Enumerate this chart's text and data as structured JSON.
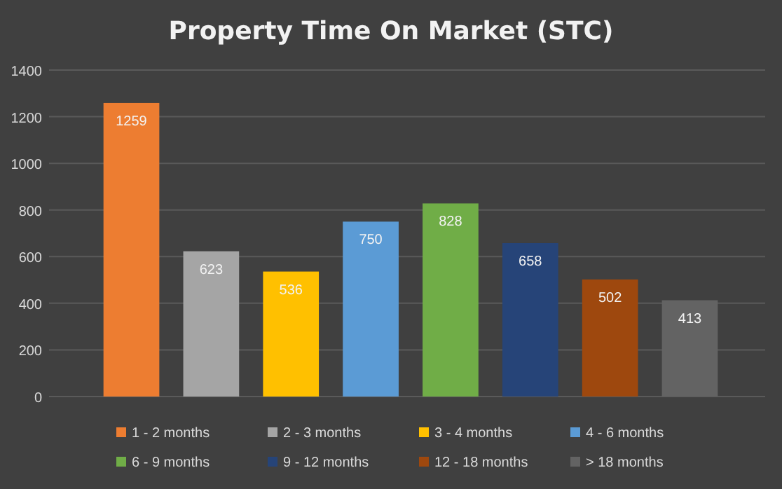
{
  "chart_data": {
    "type": "bar",
    "title": "Property Time On Market (STC)",
    "categories": [
      null
    ],
    "series": [
      {
        "name": "1 - 2 months",
        "color": "#ed7d31",
        "values": [
          1259
        ]
      },
      {
        "name": "2 - 3 months",
        "color": "#a5a5a5",
        "values": [
          623
        ]
      },
      {
        "name": "3 - 4 months",
        "color": "#ffc000",
        "values": [
          536
        ]
      },
      {
        "name": "4 - 6 months",
        "color": "#5b9bd5",
        "values": [
          750
        ]
      },
      {
        "name": "6 - 9 months",
        "color": "#70ad47",
        "values": [
          828
        ]
      },
      {
        "name": "9 - 12 months",
        "color": "#264478",
        "values": [
          658
        ]
      },
      {
        "name": "12 - 18 months",
        "color": "#9e480e",
        "values": [
          502
        ]
      },
      {
        "name": "> 18 months",
        "color": "#636363",
        "values": [
          413
        ]
      }
    ],
    "ylim": [
      0,
      1400
    ],
    "yticks": [
      0,
      200,
      400,
      600,
      800,
      1000,
      1200,
      1400
    ],
    "grid": "y",
    "legend": "bottom",
    "data_labels": true,
    "tick_labels": "y"
  }
}
